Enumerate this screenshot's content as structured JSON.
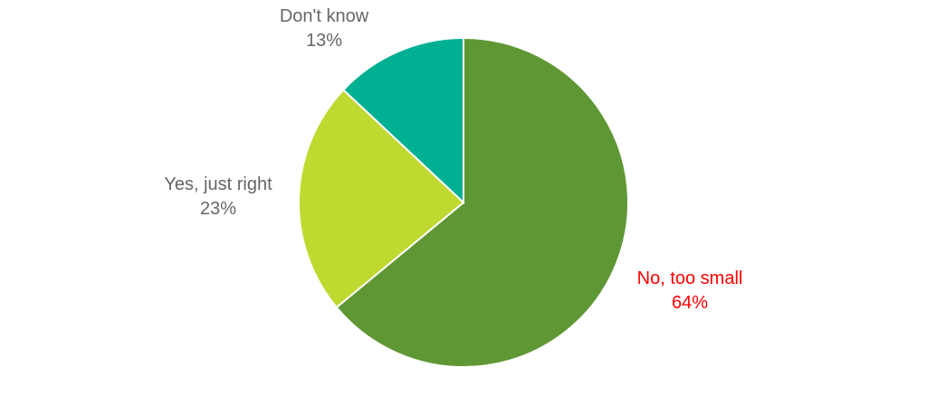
{
  "chart_data": {
    "type": "pie",
    "start": "top",
    "direction": "clockwise",
    "slices": [
      {
        "label": "No, too small",
        "value": 64,
        "value_label": "64%",
        "color": "#5f9734",
        "label_color": "#ff0000"
      },
      {
        "label": "Yes, just right",
        "value": 23,
        "value_label": "23%",
        "color": "#c0d930",
        "label_color": "#666666"
      },
      {
        "label": "Don't know",
        "value": 13,
        "value_label": "13%",
        "color": "#00b092",
        "label_color": "#666666"
      }
    ]
  }
}
